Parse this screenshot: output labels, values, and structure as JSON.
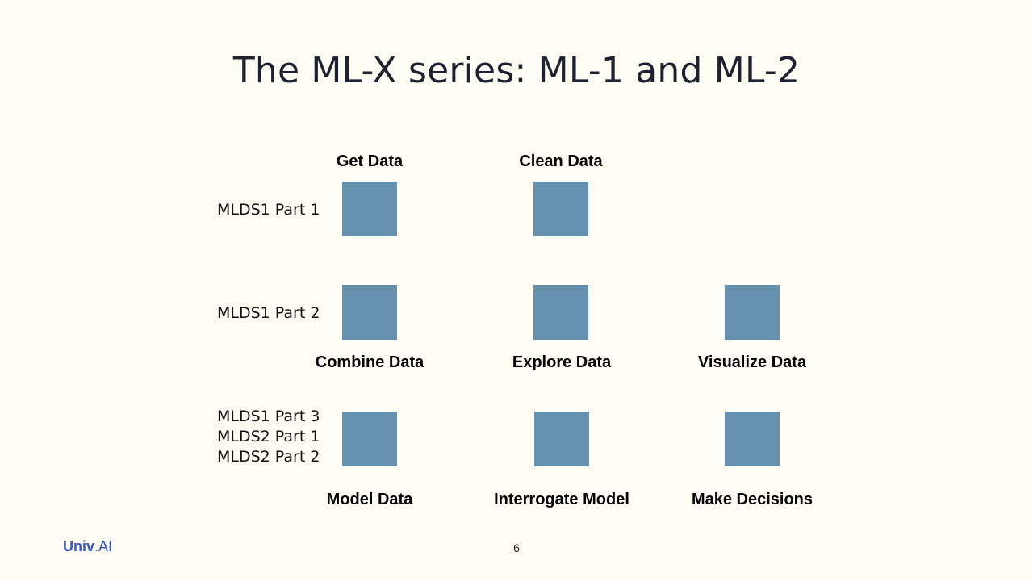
{
  "slide": {
    "title": "The ML-X series: ML-1 and ML-2",
    "page_number": "6",
    "logo": {
      "main": "Univ",
      "suffix": ".AI",
      "color": "#3554d1"
    },
    "box_color": "#6591ae"
  },
  "rows": [
    {
      "labels": [
        "MLDS1 Part 1"
      ]
    },
    {
      "labels": [
        "MLDS1 Part 2"
      ]
    },
    {
      "labels": [
        "MLDS1 Part 3",
        "MLDS2 Part 1",
        "MLDS2 Part 2"
      ]
    }
  ],
  "steps": {
    "get_data": "Get Data",
    "clean_data": "Clean Data",
    "combine_data": "Combine Data",
    "explore_data": "Explore Data",
    "visualize_data": "Visualize Data",
    "model_data": "Model Data",
    "interrogate_model": "Interrogate Model",
    "make_decisions": "Make Decisions"
  }
}
